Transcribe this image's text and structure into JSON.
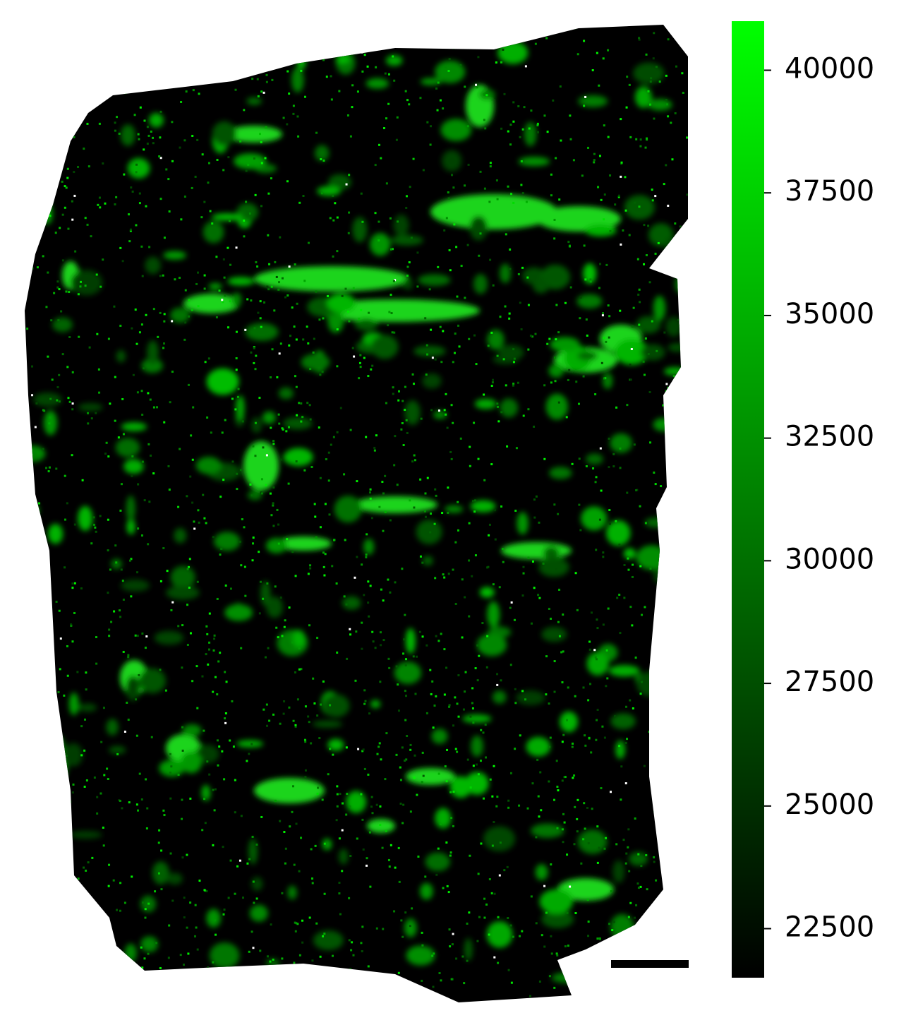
{
  "chart_data": {
    "type": "heatmap",
    "colorbar": {
      "clim": [
        21500,
        41000
      ],
      "ticks": [
        22500,
        25000,
        27500,
        30000,
        32500,
        35000,
        37500,
        40000
      ],
      "colors": [
        "#000000",
        "#00ff00"
      ]
    }
  }
}
